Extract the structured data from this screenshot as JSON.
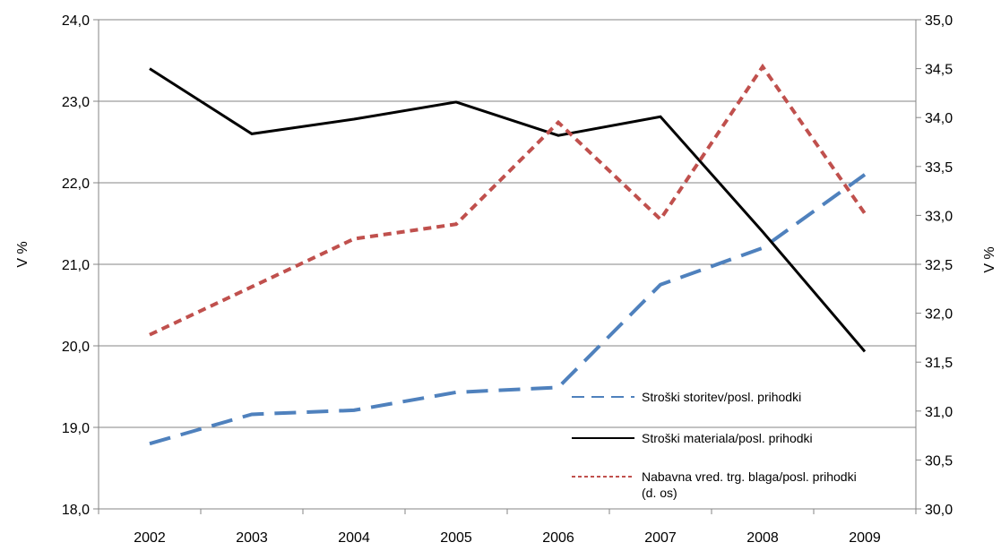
{
  "chart_data": {
    "type": "line",
    "categories": [
      "2002",
      "2003",
      "2004",
      "2005",
      "2006",
      "2007",
      "2008",
      "2009"
    ],
    "ylabel": "V %",
    "y2label": "V %",
    "ylim": [
      18.0,
      24.0
    ],
    "y2lim": [
      30.0,
      35.0
    ],
    "yticks": [
      "18,0",
      "19,0",
      "20,0",
      "21,0",
      "22,0",
      "23,0",
      "24,0"
    ],
    "y2ticks": [
      "30,0",
      "30,5",
      "31,0",
      "31,5",
      "32,0",
      "32,5",
      "33,0",
      "33,5",
      "34,0",
      "34,5",
      "35,0"
    ],
    "grid": true,
    "legend_position": "bottom-right",
    "series": [
      {
        "name": "Stroški storitev/posl. prihodki",
        "axis": "left",
        "color": "#4F81BD",
        "dash": "long-dash",
        "values": [
          18.8,
          19.16,
          19.21,
          19.43,
          19.49,
          20.75,
          21.2,
          22.1
        ]
      },
      {
        "name": "Stroški materiala/posl. prihodki",
        "axis": "left",
        "color": "#000000",
        "dash": "solid",
        "values": [
          23.4,
          22.6,
          22.78,
          22.99,
          22.58,
          22.81,
          21.4,
          19.93
        ]
      },
      {
        "name": "Nabavna vred. trg. blaga/posl. prihodki",
        "name_line2": "(d. os)",
        "axis": "right",
        "color": "#C0504D",
        "dash": "short-dash",
        "values": [
          31.78,
          32.27,
          32.76,
          32.91,
          33.95,
          32.96,
          34.52,
          33.02
        ]
      }
    ]
  }
}
